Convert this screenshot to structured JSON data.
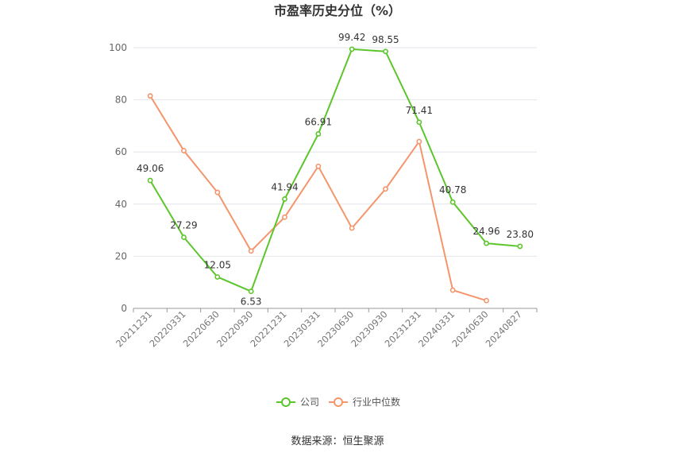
{
  "chart_data": {
    "type": "line",
    "title": "市盈率历史分位（%）",
    "xlabel": "",
    "ylabel": "",
    "ylim": [
      0,
      100
    ],
    "yticks": [
      "0",
      "20",
      "40",
      "60",
      "80",
      "100"
    ],
    "grid": true,
    "legend": "bottom-center",
    "categories": [
      "20211231",
      "20220331",
      "20220630",
      "20220930",
      "20221231",
      "20230331",
      "20230630",
      "20230930",
      "20231231",
      "20240331",
      "20240630",
      "20240827"
    ],
    "series": [
      {
        "name": "公司",
        "color": "#5cc52b",
        "values": [
          49.06,
          27.29,
          12.05,
          6.53,
          41.94,
          66.91,
          99.42,
          98.55,
          71.41,
          40.78,
          24.96,
          23.8
        ],
        "labels": [
          "49.06",
          "27.29",
          "12.05",
          "6.53",
          "41.94",
          "66.91",
          "99.42",
          "98.55",
          "71.41",
          "40.78",
          "24.96",
          "23.80"
        ]
      },
      {
        "name": "行业中位数",
        "color": "#f4956c",
        "values": [
          81.5,
          60.5,
          44.5,
          22.0,
          35.0,
          54.5,
          30.8,
          45.8,
          64.0,
          7.0,
          3.0,
          null
        ]
      }
    ]
  },
  "source": "数据来源：恒生聚源"
}
